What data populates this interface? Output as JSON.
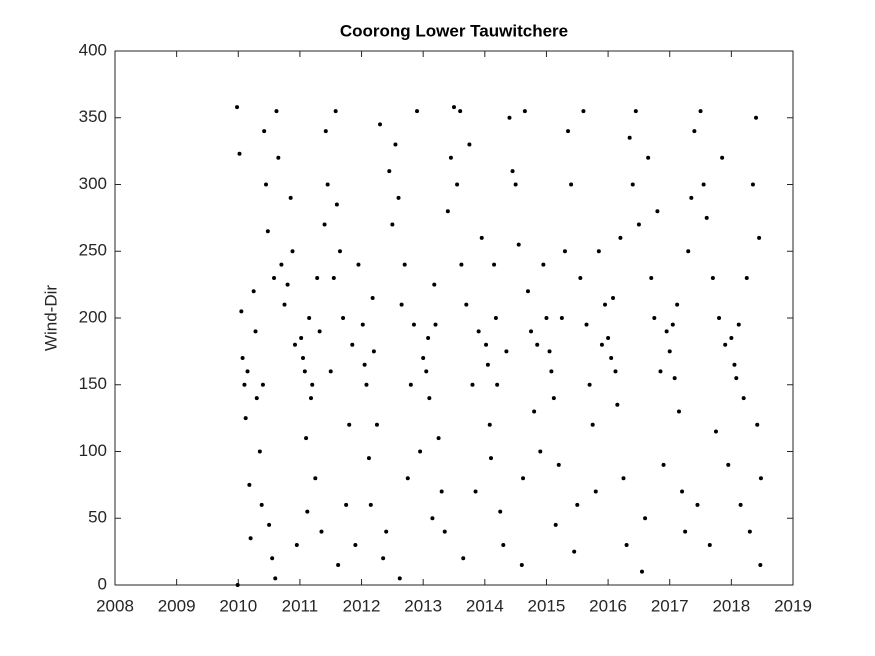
{
  "chart_data": {
    "type": "scatter",
    "title": "Coorong Lower Tauwitchere",
    "ylabel": "Wind-Dir",
    "color": "#000000",
    "xlim": [
      2008,
      2019
    ],
    "xticks": [
      2008,
      2009,
      2010,
      2011,
      2012,
      2013,
      2014,
      2015,
      2016,
      2017,
      2018,
      2019
    ],
    "ylim": [
      0,
      400
    ],
    "yticks": [
      0,
      50,
      100,
      150,
      200,
      250,
      300,
      350,
      400
    ],
    "grid": false,
    "x": [
      2009.98,
      2010.02,
      2010.05,
      2010.07,
      2010.1,
      2010.12,
      2010.15,
      2010.18,
      2010.2,
      2010.25,
      2010.28,
      2010.3,
      2010.35,
      2010.38,
      2010.42,
      2010.45,
      2010.48,
      2010.5,
      2010.55,
      2010.6,
      2010.62,
      2010.65,
      2010.7,
      2010.75,
      2010.8,
      2010.85,
      2010.88,
      2010.92,
      2010.95,
      2009.99,
      2010.4,
      2010.58,
      2011.02,
      2011.05,
      2011.08,
      2011.1,
      2011.12,
      2011.15,
      2011.18,
      2011.2,
      2011.25,
      2011.28,
      2011.32,
      2011.35,
      2011.4,
      2011.42,
      2011.45,
      2011.5,
      2011.55,
      2011.58,
      2011.6,
      2011.62,
      2011.65,
      2011.7,
      2011.75,
      2011.8,
      2011.85,
      2011.9,
      2011.95,
      2012.02,
      2012.05,
      2012.08,
      2012.12,
      2012.15,
      2012.18,
      2012.2,
      2012.25,
      2012.3,
      2012.35,
      2012.4,
      2012.45,
      2012.5,
      2012.55,
      2012.6,
      2012.62,
      2012.65,
      2012.7,
      2012.75,
      2012.8,
      2012.85,
      2012.9,
      2012.95,
      2013.0,
      2013.05,
      2013.08,
      2013.1,
      2013.15,
      2013.18,
      2013.2,
      2013.25,
      2013.3,
      2013.35,
      2013.4,
      2013.45,
      2013.5,
      2013.55,
      2013.6,
      2013.62,
      2013.65,
      2013.7,
      2013.75,
      2013.8,
      2013.85,
      2013.9,
      2013.95,
      2014.02,
      2014.05,
      2014.08,
      2014.1,
      2014.15,
      2014.18,
      2014.2,
      2014.25,
      2014.3,
      2014.35,
      2014.4,
      2014.45,
      2014.5,
      2014.55,
      2014.6,
      2014.62,
      2014.65,
      2014.7,
      2014.75,
      2014.8,
      2014.85,
      2014.9,
      2014.95,
      2015.0,
      2015.05,
      2015.08,
      2015.12,
      2015.15,
      2015.2,
      2015.25,
      2015.3,
      2015.35,
      2015.4,
      2015.45,
      2015.5,
      2015.55,
      2015.6,
      2015.65,
      2015.7,
      2015.75,
      2015.8,
      2015.85,
      2015.9,
      2015.95,
      2016.0,
      2016.05,
      2016.08,
      2016.12,
      2016.15,
      2016.2,
      2016.25,
      2016.3,
      2016.35,
      2016.4,
      2016.45,
      2016.5,
      2016.55,
      2016.6,
      2016.65,
      2016.7,
      2016.75,
      2016.8,
      2016.85,
      2016.9,
      2016.95,
      2017.0,
      2017.05,
      2017.08,
      2017.12,
      2017.15,
      2017.2,
      2017.25,
      2017.3,
      2017.35,
      2017.4,
      2017.45,
      2017.5,
      2017.55,
      2017.6,
      2017.65,
      2017.7,
      2017.75,
      2017.8,
      2017.85,
      2017.9,
      2017.95,
      2018.0,
      2018.05,
      2018.08,
      2018.12,
      2018.15,
      2018.2,
      2018.25,
      2018.3,
      2018.35,
      2018.4,
      2018.42,
      2018.45,
      2018.47,
      2018.48
    ],
    "values": [
      358,
      323,
      205,
      170,
      150,
      125,
      160,
      75,
      35,
      220,
      190,
      140,
      100,
      60,
      340,
      300,
      265,
      45,
      20,
      5,
      355,
      320,
      240,
      210,
      225,
      290,
      250,
      180,
      30,
      0,
      150,
      230,
      185,
      170,
      160,
      110,
      55,
      200,
      140,
      150,
      80,
      230,
      190,
      40,
      270,
      340,
      300,
      160,
      230,
      355,
      285,
      15,
      250,
      200,
      60,
      120,
      180,
      30,
      240,
      195,
      165,
      150,
      95,
      60,
      215,
      175,
      120,
      345,
      20,
      40,
      310,
      270,
      330,
      290,
      5,
      210,
      240,
      80,
      150,
      195,
      355,
      100,
      170,
      160,
      185,
      140,
      50,
      225,
      195,
      110,
      70,
      40,
      280,
      320,
      358,
      300,
      355,
      240,
      20,
      210,
      330,
      150,
      70,
      190,
      260,
      180,
      165,
      120,
      95,
      240,
      200,
      150,
      55,
      30,
      175,
      350,
      310,
      300,
      255,
      15,
      80,
      355,
      220,
      190,
      130,
      180,
      100,
      240,
      200,
      175,
      160,
      140,
      45,
      90,
      200,
      250,
      340,
      300,
      25,
      60,
      230,
      355,
      195,
      150,
      120,
      70,
      250,
      180,
      210,
      185,
      170,
      215,
      160,
      135,
      260,
      80,
      30,
      335,
      300,
      355,
      270,
      10,
      50,
      320,
      230,
      200,
      280,
      160,
      90,
      190,
      175,
      195,
      155,
      210,
      130,
      70,
      40,
      250,
      290,
      340,
      60,
      355,
      300,
      275,
      30,
      230,
      115,
      200,
      320,
      180,
      90,
      185,
      165,
      155,
      195,
      60,
      140,
      230,
      40,
      300,
      350,
      120,
      260,
      15,
      80
    ]
  }
}
